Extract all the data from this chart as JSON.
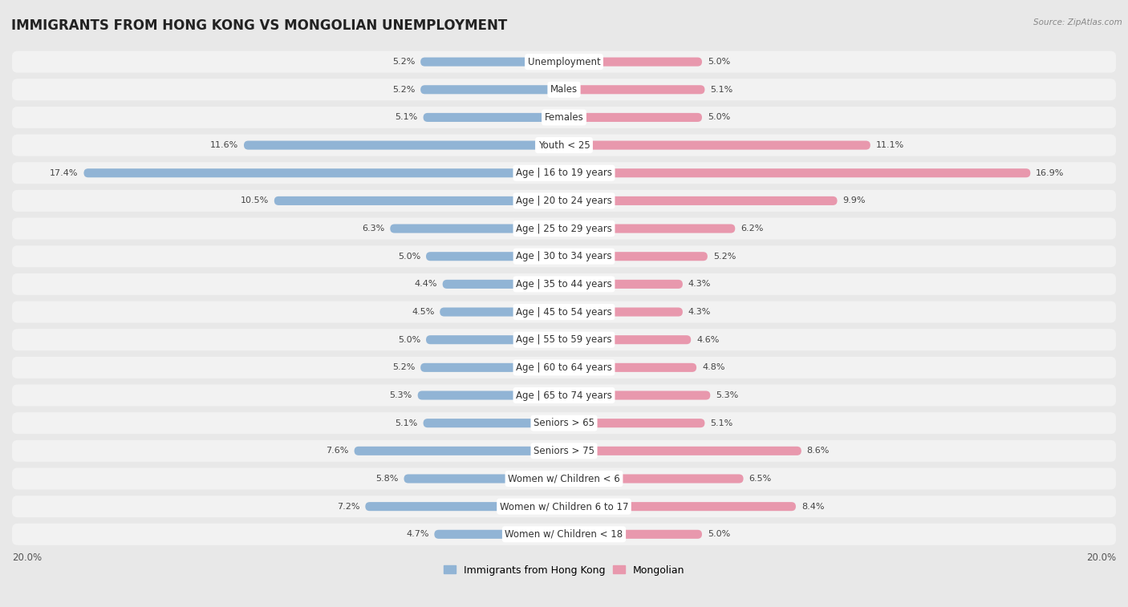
{
  "title": "IMMIGRANTS FROM HONG KONG VS MONGOLIAN UNEMPLOYMENT",
  "source": "Source: ZipAtlas.com",
  "categories": [
    "Unemployment",
    "Males",
    "Females",
    "Youth < 25",
    "Age | 16 to 19 years",
    "Age | 20 to 24 years",
    "Age | 25 to 29 years",
    "Age | 30 to 34 years",
    "Age | 35 to 44 years",
    "Age | 45 to 54 years",
    "Age | 55 to 59 years",
    "Age | 60 to 64 years",
    "Age | 65 to 74 years",
    "Seniors > 65",
    "Seniors > 75",
    "Women w/ Children < 6",
    "Women w/ Children 6 to 17",
    "Women w/ Children < 18"
  ],
  "hk_values": [
    5.2,
    5.2,
    5.1,
    11.6,
    17.4,
    10.5,
    6.3,
    5.0,
    4.4,
    4.5,
    5.0,
    5.2,
    5.3,
    5.1,
    7.6,
    5.8,
    7.2,
    4.7
  ],
  "mn_values": [
    5.0,
    5.1,
    5.0,
    11.1,
    16.9,
    9.9,
    6.2,
    5.2,
    4.3,
    4.3,
    4.6,
    4.8,
    5.3,
    5.1,
    8.6,
    6.5,
    8.4,
    5.0
  ],
  "hk_color": "#91b4d5",
  "mn_color": "#e898ad",
  "hk_label": "Immigrants from Hong Kong",
  "mn_label": "Mongolian",
  "axis_max": 20.0,
  "bg_color": "#e8e8e8",
  "row_bg_color": "#f2f2f2",
  "bar_label_bg": "#ffffff",
  "title_fontsize": 12,
  "label_fontsize": 8.5,
  "value_fontsize": 8
}
